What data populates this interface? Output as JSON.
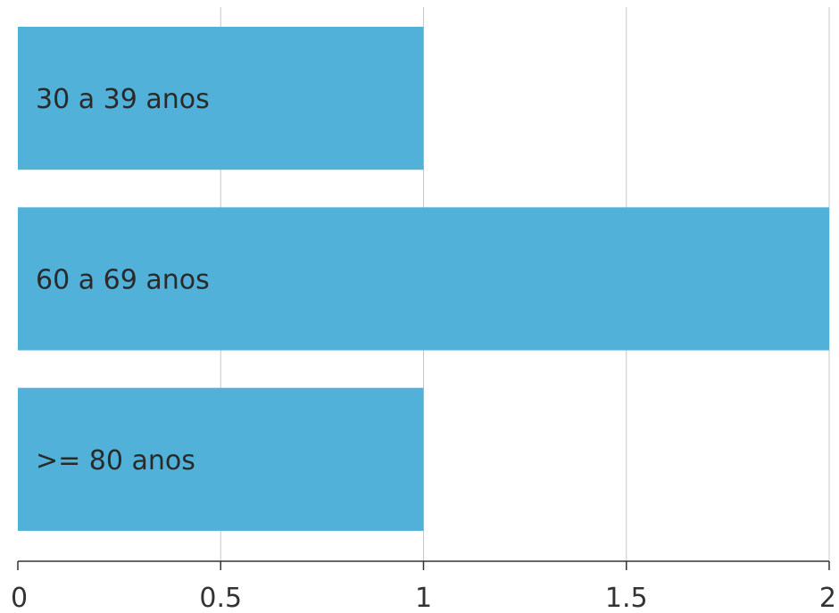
{
  "chart_data": {
    "type": "bar",
    "orientation": "horizontal",
    "categories": [
      "30 a 39 anos",
      "60 a 69 anos",
      ">= 80 anos"
    ],
    "values": [
      1,
      2,
      1
    ],
    "xlim": [
      0,
      2
    ],
    "x_ticks": [
      0,
      0.5,
      1,
      1.5,
      2
    ],
    "x_tick_labels": [
      "0",
      "0.5",
      "1",
      "1.5",
      "2"
    ],
    "grid": true,
    "bar_color": "#52b1d9"
  }
}
